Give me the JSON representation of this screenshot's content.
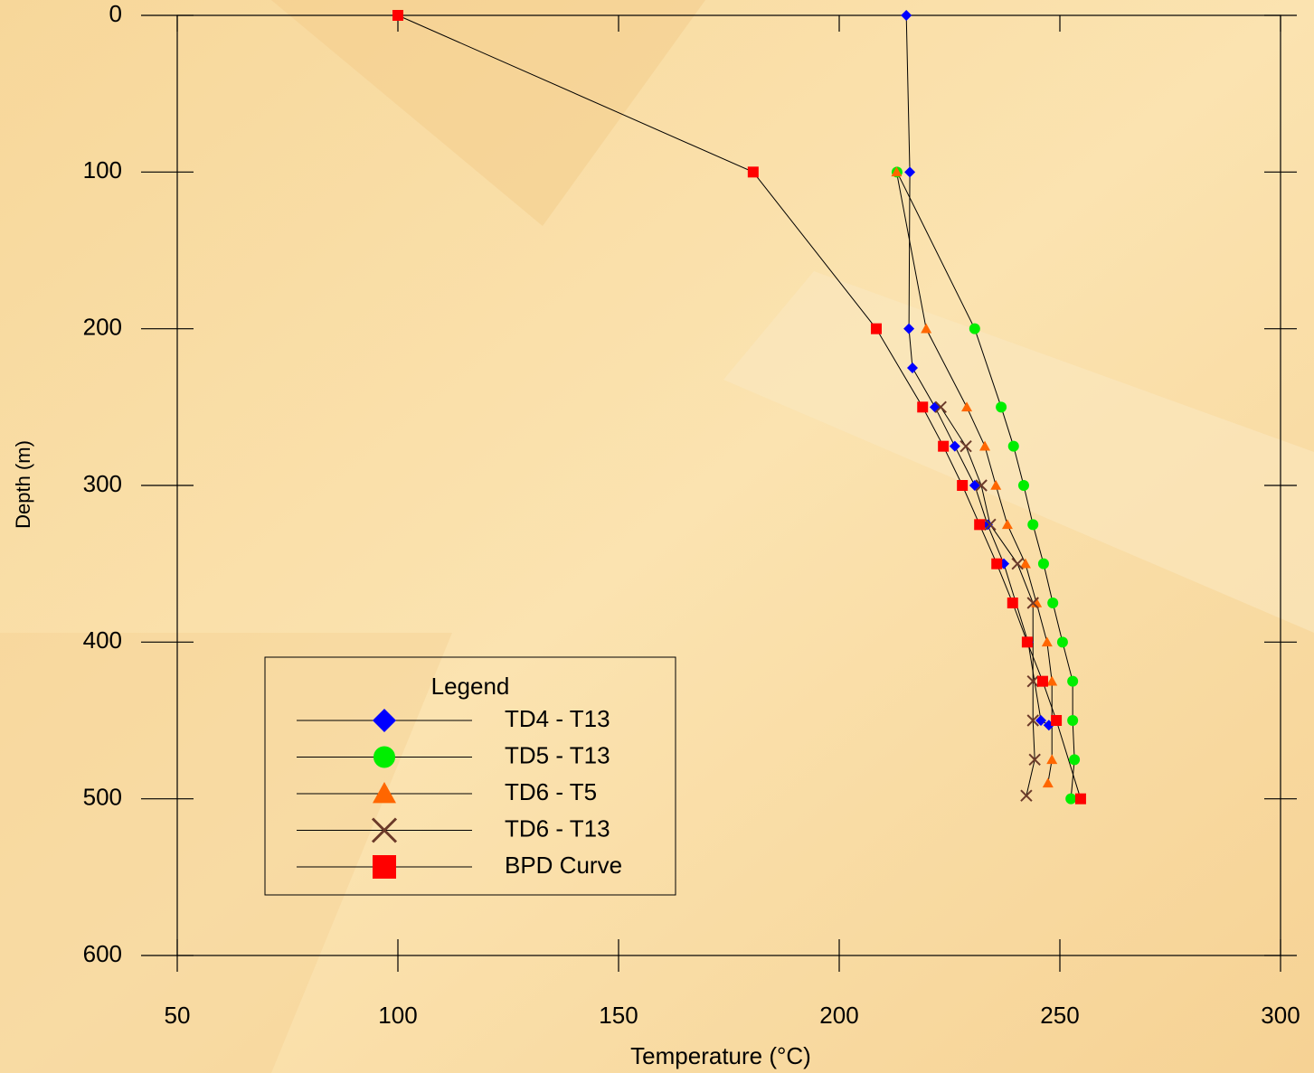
{
  "chart_data": {
    "type": "line",
    "xlabel": "Temperature (°C)",
    "ylabel": "Depth (m)",
    "xlim": [
      50,
      300
    ],
    "xticks": [
      50,
      100,
      150,
      200,
      250,
      300
    ],
    "ylim": [
      0,
      600
    ],
    "yticks": [
      0,
      100,
      200,
      300,
      400,
      500,
      600
    ],
    "y_inverted": true,
    "legend_title": "Legend",
    "legend": "lower left",
    "series": [
      {
        "name": "TD4 - T13",
        "color": "#0000ff",
        "marker": "diamond",
        "x": [
          215.2,
          216,
          215.8,
          216.6,
          221.7,
          226.2,
          230.7,
          233.6,
          237.3,
          242.8,
          245.7,
          247.5
        ],
        "values": [
          0,
          100,
          200,
          225,
          250,
          275,
          300,
          325,
          350,
          400,
          450,
          453
        ]
      },
      {
        "name": "TD5 - T13",
        "color": "#00ee00",
        "marker": "circle",
        "x": [
          213.1,
          230.7,
          236.7,
          239.5,
          241.8,
          243.9,
          246.3,
          248.4,
          250.6,
          252.9,
          252.9,
          253.3,
          252.5
        ],
        "values": [
          100,
          200,
          250,
          275,
          300,
          325,
          350,
          375,
          400,
          425,
          450,
          475,
          500
        ]
      },
      {
        "name": "TD6 - T5",
        "color": "#ff6600",
        "marker": "triangle",
        "x": [
          213,
          219.7,
          228.9,
          233,
          235.5,
          238.1,
          242.2,
          244.7,
          247.1,
          248.2,
          248.2,
          247.3
        ],
        "values": [
          100,
          200,
          250,
          275,
          300,
          325,
          350,
          375,
          400,
          425,
          475,
          490
        ]
      },
      {
        "name": "TD6 - T13",
        "color": "#6b3a2a",
        "marker": "x",
        "x": [
          223,
          228.7,
          232.2,
          234.2,
          240.4,
          243.9,
          243.9,
          243.9,
          244.3,
          242.4
        ],
        "values": [
          250,
          275,
          300,
          325,
          350,
          375,
          425,
          450,
          475,
          498
        ]
      },
      {
        "name": "BPD Curve",
        "color": "#ff0000",
        "marker": "square",
        "x": [
          100,
          180.5,
          208.4,
          218.9,
          223.6,
          227.9,
          231.8,
          235.7,
          239.3,
          242.6,
          246.1,
          249.2,
          254.7
        ],
        "values": [
          0,
          100,
          200,
          250,
          275,
          300,
          325,
          350,
          375,
          400,
          425,
          450,
          500
        ]
      }
    ]
  }
}
